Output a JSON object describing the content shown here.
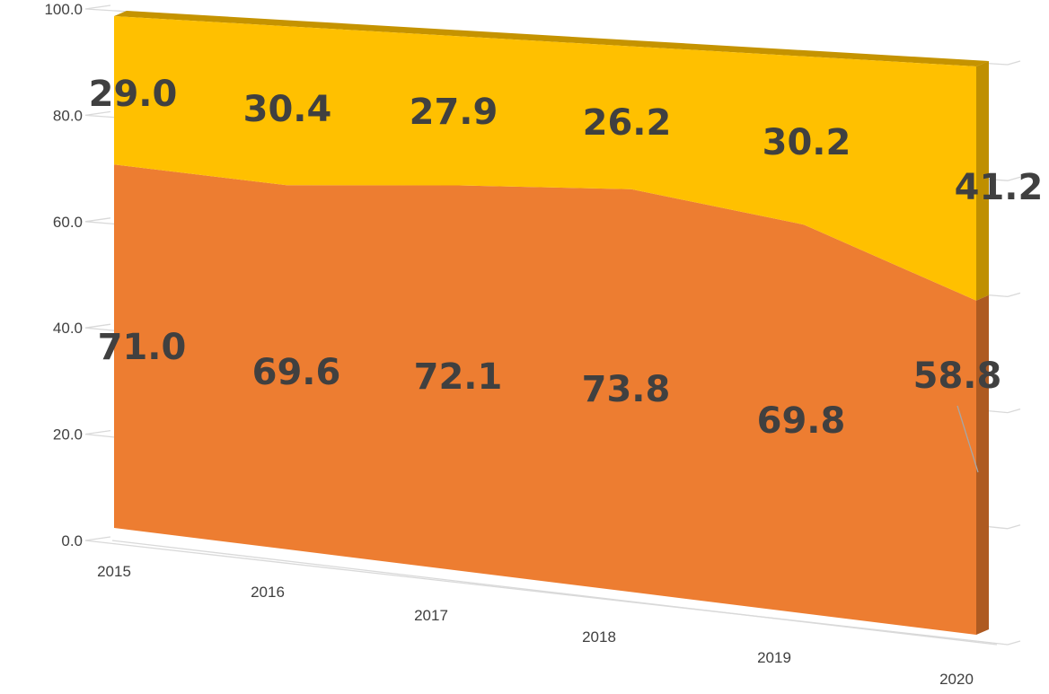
{
  "chart_data": {
    "type": "area",
    "stacked": "percent",
    "three_d": true,
    "categories": [
      "2015",
      "2016",
      "2017",
      "2018",
      "2019",
      "2020"
    ],
    "series": [
      {
        "values": [
          71.0,
          69.6,
          72.1,
          73.8,
          69.8,
          58.8
        ],
        "color": "#ED7D31",
        "labels": [
          "71.0",
          "69.6",
          "72.1",
          "73.8",
          "69.8",
          "58.8"
        ]
      },
      {
        "values": [
          29.0,
          30.4,
          27.9,
          26.2,
          30.2,
          41.2
        ],
        "color": "#FFC000",
        "labels": [
          "29.0",
          "30.4",
          "27.9",
          "26.2",
          "30.2",
          "41.2"
        ]
      }
    ],
    "y_ticks": [
      "0.0",
      "20.0",
      "40.0",
      "60.0",
      "80.0",
      "100.0"
    ],
    "ylim": [
      0,
      100
    ],
    "grid": true,
    "legend": "none"
  }
}
